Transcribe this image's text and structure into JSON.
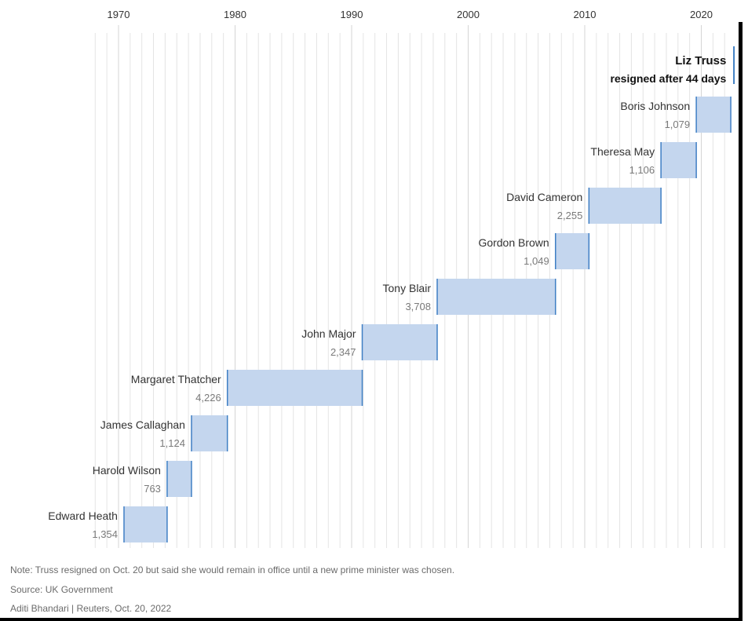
{
  "chart_data": {
    "type": "bar",
    "orientation": "horizontal-timeline",
    "x_axis": {
      "ticks": [
        "1970",
        "1980",
        "1990",
        "2000",
        "2010",
        "2020"
      ],
      "range": [
        1967.5,
        2022.8
      ],
      "position": "top",
      "grid": true
    },
    "series": [
      {
        "name": "Edward Heath",
        "value_label": "1,354",
        "days": 1354,
        "start": 1970.47,
        "end": 1974.17
      },
      {
        "name": "Harold Wilson",
        "value_label": "763",
        "days": 763,
        "start": 1974.17,
        "end": 1976.26
      },
      {
        "name": "James Callaghan",
        "value_label": "1,124",
        "days": 1124,
        "start": 1976.26,
        "end": 1979.34
      },
      {
        "name": "Margaret Thatcher",
        "value_label": "4,226",
        "days": 4226,
        "start": 1979.34,
        "end": 1990.91
      },
      {
        "name": "John Major",
        "value_label": "2,347",
        "days": 2347,
        "start": 1990.91,
        "end": 1997.34
      },
      {
        "name": "Tony Blair",
        "value_label": "3,708",
        "days": 3708,
        "start": 1997.34,
        "end": 2007.49
      },
      {
        "name": "Gordon Brown",
        "value_label": "1,049",
        "days": 1049,
        "start": 2007.49,
        "end": 2010.36
      },
      {
        "name": "David Cameron",
        "value_label": "2,255",
        "days": 2255,
        "start": 2010.36,
        "end": 2016.54
      },
      {
        "name": "Theresa May",
        "value_label": "1,106",
        "days": 1106,
        "start": 2016.54,
        "end": 2019.57
      },
      {
        "name": "Boris Johnson",
        "value_label": "1,079",
        "days": 1079,
        "start": 2019.57,
        "end": 2022.53
      },
      {
        "name": "Liz Truss",
        "value_label": "resigned after 44 days",
        "days": 44,
        "start": 2022.68,
        "end": 2022.8,
        "highlight": true
      }
    ],
    "annotations": {
      "note": "Note: Truss resigned on Oct. 20 but said she would remain in office until a new prime minister was chosen.",
      "source": "Source: UK Government",
      "credit": "Aditi Bhandari | Reuters, Oct. 20, 2022"
    },
    "colors": {
      "bar": "#c4d6ee",
      "bar_edge": "#3f7fc4",
      "grid": "#e4e4e4",
      "label": "#333333",
      "value": "#7a7a7a"
    }
  }
}
